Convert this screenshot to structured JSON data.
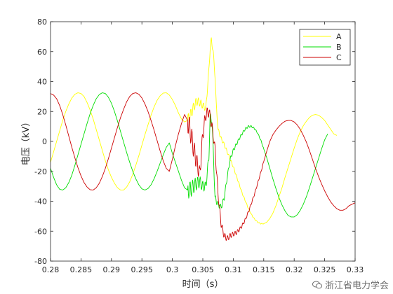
{
  "chart_data": {
    "type": "line",
    "xlabel": "时间（s）",
    "ylabel": "电压（kV）",
    "xlim": [
      0.28,
      0.33
    ],
    "ylim": [
      -80,
      80
    ],
    "x_ticks": [
      "0.28",
      "0.285",
      "0.29",
      "0.295",
      "0.3",
      "0.305",
      "0.31",
      "0.315",
      "0.32",
      "0.325",
      "0.33"
    ],
    "y_ticks": [
      "80",
      "60",
      "40",
      "20",
      "0",
      "-20",
      "-40",
      "-60",
      "-80"
    ],
    "legend_position": "top-right",
    "grid": false,
    "series": [
      {
        "name": "A",
        "color": "#ffff00",
        "points": [
          [
            0.28,
            -14
          ],
          [
            0.2805,
            -7
          ],
          [
            0.281,
            0
          ],
          [
            0.2815,
            7
          ],
          [
            0.282,
            14
          ],
          [
            0.2825,
            20
          ],
          [
            0.283,
            25
          ],
          [
            0.2835,
            29
          ],
          [
            0.284,
            31.5
          ],
          [
            0.2845,
            32.5
          ],
          [
            0.285,
            32
          ],
          [
            0.2855,
            30
          ],
          [
            0.286,
            26
          ],
          [
            0.2865,
            21
          ],
          [
            0.287,
            15
          ],
          [
            0.2875,
            8
          ],
          [
            0.288,
            1
          ],
          [
            0.2885,
            -6
          ],
          [
            0.289,
            -13
          ],
          [
            0.2895,
            -19
          ],
          [
            0.29,
            -24
          ],
          [
            0.2905,
            -28
          ],
          [
            0.291,
            -31
          ],
          [
            0.2915,
            -32.5
          ],
          [
            0.292,
            -32.5
          ],
          [
            0.2925,
            -30.5
          ],
          [
            0.293,
            -27
          ],
          [
            0.2935,
            -22
          ],
          [
            0.294,
            -16
          ],
          [
            0.2945,
            -9.5
          ],
          [
            0.295,
            -2.5
          ],
          [
            0.2955,
            4.5
          ],
          [
            0.296,
            11
          ],
          [
            0.2965,
            17.5
          ],
          [
            0.297,
            23
          ],
          [
            0.2975,
            27.5
          ],
          [
            0.298,
            30.5
          ],
          [
            0.2985,
            32.3
          ],
          [
            0.299,
            32.5
          ],
          [
            0.2995,
            31
          ],
          [
            0.3,
            28
          ],
          [
            0.3005,
            24
          ],
          [
            0.301,
            19
          ],
          [
            0.3015,
            15
          ],
          [
            0.302,
            13
          ],
          [
            0.3025,
            14
          ],
          [
            0.303,
            18
          ],
          [
            0.3035,
            23
          ],
          [
            0.304,
            27
          ],
          [
            0.3045,
            26
          ],
          [
            0.305,
            24
          ],
          [
            0.3055,
            22
          ],
          [
            0.306,
            48
          ],
          [
            0.3062,
            62
          ],
          [
            0.3064,
            68
          ],
          [
            0.3067,
            60
          ],
          [
            0.307,
            44
          ],
          [
            0.3072,
            25
          ],
          [
            0.3075,
            8
          ],
          [
            0.308,
            2
          ],
          [
            0.3085,
            -2
          ],
          [
            0.309,
            -7
          ],
          [
            0.3095,
            -12
          ],
          [
            0.31,
            -17
          ],
          [
            0.3105,
            -23
          ],
          [
            0.311,
            -29
          ],
          [
            0.3115,
            -35
          ],
          [
            0.312,
            -40
          ],
          [
            0.3125,
            -45
          ],
          [
            0.313,
            -49
          ],
          [
            0.3135,
            -52
          ],
          [
            0.314,
            -54
          ],
          [
            0.3145,
            -55
          ],
          [
            0.315,
            -55
          ],
          [
            0.3155,
            -54
          ],
          [
            0.316,
            -51.5
          ],
          [
            0.3165,
            -48
          ],
          [
            0.317,
            -43
          ],
          [
            0.3175,
            -37
          ],
          [
            0.318,
            -31
          ],
          [
            0.3185,
            -24
          ],
          [
            0.319,
            -17.5
          ],
          [
            0.3195,
            -11
          ],
          [
            0.32,
            -4.5
          ],
          [
            0.3205,
            1.5
          ],
          [
            0.321,
            6.5
          ],
          [
            0.3215,
            10.5
          ],
          [
            0.322,
            13.5
          ],
          [
            0.3225,
            16
          ],
          [
            0.323,
            17.5
          ],
          [
            0.3235,
            18
          ],
          [
            0.324,
            17.5
          ],
          [
            0.3245,
            16
          ],
          [
            0.325,
            14
          ],
          [
            0.3255,
            11
          ],
          [
            0.326,
            8
          ],
          [
            0.3265,
            5
          ],
          [
            0.327,
            4
          ]
        ]
      },
      {
        "name": "B",
        "color": "#00dd00",
        "points": [
          [
            0.28,
            -18
          ],
          [
            0.2805,
            -24
          ],
          [
            0.281,
            -29
          ],
          [
            0.2815,
            -32
          ],
          [
            0.282,
            -32.5
          ],
          [
            0.2825,
            -31
          ],
          [
            0.283,
            -27.5
          ],
          [
            0.2835,
            -22.5
          ],
          [
            0.284,
            -16
          ],
          [
            0.2845,
            -9
          ],
          [
            0.285,
            -2
          ],
          [
            0.2855,
            5
          ],
          [
            0.286,
            12
          ],
          [
            0.2865,
            18.5
          ],
          [
            0.287,
            24
          ],
          [
            0.2875,
            28.5
          ],
          [
            0.288,
            31.3
          ],
          [
            0.2885,
            32.5
          ],
          [
            0.289,
            32
          ],
          [
            0.2895,
            29.5
          ],
          [
            0.29,
            25.5
          ],
          [
            0.2905,
            20
          ],
          [
            0.291,
            13.5
          ],
          [
            0.2915,
            6.5
          ],
          [
            0.292,
            -0.5
          ],
          [
            0.2925,
            -7.5
          ],
          [
            0.293,
            -14
          ],
          [
            0.2935,
            -20
          ],
          [
            0.294,
            -25
          ],
          [
            0.2945,
            -29
          ],
          [
            0.295,
            -31.7
          ],
          [
            0.2955,
            -32.5
          ],
          [
            0.296,
            -31.5
          ],
          [
            0.2965,
            -29
          ],
          [
            0.297,
            -25
          ],
          [
            0.2975,
            -20
          ],
          [
            0.298,
            -14.5
          ],
          [
            0.2985,
            -9
          ],
          [
            0.299,
            -4
          ],
          [
            0.2995,
            -1
          ],
          [
            0.3,
            -8
          ],
          [
            0.3005,
            -14
          ],
          [
            0.301,
            -20
          ],
          [
            0.3015,
            -26
          ],
          [
            0.302,
            -31
          ],
          [
            0.3025,
            -32.5
          ],
          [
            0.303,
            -32
          ],
          [
            0.3035,
            -30
          ],
          [
            0.304,
            -28
          ],
          [
            0.3045,
            -27
          ],
          [
            0.305,
            -30
          ],
          [
            0.3055,
            -30
          ],
          [
            0.306,
            -10
          ],
          [
            0.3062,
            16
          ],
          [
            0.3065,
            14
          ],
          [
            0.3068,
            -15
          ],
          [
            0.307,
            -38
          ],
          [
            0.3075,
            -42
          ],
          [
            0.308,
            -44
          ],
          [
            0.3085,
            -38
          ],
          [
            0.309,
            -24
          ],
          [
            0.3095,
            -12
          ],
          [
            0.31,
            -6
          ],
          [
            0.3105,
            -2
          ],
          [
            0.311,
            2
          ],
          [
            0.3115,
            5.5
          ],
          [
            0.312,
            8.5
          ],
          [
            0.3125,
            10
          ],
          [
            0.313,
            10
          ],
          [
            0.3135,
            8.5
          ],
          [
            0.314,
            5.5
          ],
          [
            0.3145,
            1
          ],
          [
            0.315,
            -5
          ],
          [
            0.3155,
            -11
          ],
          [
            0.316,
            -18
          ],
          [
            0.3165,
            -25
          ],
          [
            0.317,
            -31.5
          ],
          [
            0.3175,
            -37.5
          ],
          [
            0.318,
            -42.5
          ],
          [
            0.3185,
            -46.5
          ],
          [
            0.319,
            -49.5
          ],
          [
            0.3195,
            -50.5
          ],
          [
            0.32,
            -50.5
          ],
          [
            0.3205,
            -49
          ],
          [
            0.321,
            -46
          ],
          [
            0.3215,
            -42
          ],
          [
            0.322,
            -37
          ],
          [
            0.3225,
            -31
          ],
          [
            0.323,
            -24.5
          ],
          [
            0.3235,
            -18
          ],
          [
            0.324,
            -11.5
          ],
          [
            0.3245,
            -5
          ],
          [
            0.325,
            1
          ],
          [
            0.3255,
            5
          ]
        ]
      },
      {
        "name": "C",
        "color": "#cc0000",
        "points": [
          [
            0.28,
            32
          ],
          [
            0.2805,
            31
          ],
          [
            0.281,
            28.5
          ],
          [
            0.2815,
            24
          ],
          [
            0.282,
            18
          ],
          [
            0.2825,
            11
          ],
          [
            0.283,
            3.5
          ],
          [
            0.2835,
            -4
          ],
          [
            0.284,
            -11
          ],
          [
            0.2845,
            -17.5
          ],
          [
            0.285,
            -23
          ],
          [
            0.2855,
            -27.5
          ],
          [
            0.286,
            -30.5
          ],
          [
            0.2865,
            -32.3
          ],
          [
            0.287,
            -32.5
          ],
          [
            0.2875,
            -31
          ],
          [
            0.288,
            -28
          ],
          [
            0.2885,
            -23.5
          ],
          [
            0.289,
            -18
          ],
          [
            0.2895,
            -11.5
          ],
          [
            0.29,
            -4.5
          ],
          [
            0.2905,
            2.5
          ],
          [
            0.291,
            9.5
          ],
          [
            0.2915,
            16
          ],
          [
            0.292,
            21.5
          ],
          [
            0.2925,
            26.5
          ],
          [
            0.293,
            30
          ],
          [
            0.2935,
            32
          ],
          [
            0.294,
            32.5
          ],
          [
            0.2945,
            31.5
          ],
          [
            0.295,
            29
          ],
          [
            0.2955,
            25
          ],
          [
            0.296,
            20
          ],
          [
            0.2965,
            14
          ],
          [
            0.297,
            7.5
          ],
          [
            0.2975,
            0.5
          ],
          [
            0.298,
            -6.5
          ],
          [
            0.2985,
            -13
          ],
          [
            0.299,
            -18
          ],
          [
            0.2995,
            -20
          ],
          [
            0.3,
            -12
          ],
          [
            0.3005,
            -3
          ],
          [
            0.301,
            5
          ],
          [
            0.3015,
            12
          ],
          [
            0.302,
            18
          ],
          [
            0.3025,
            14
          ],
          [
            0.303,
            6
          ],
          [
            0.3035,
            -5
          ],
          [
            0.304,
            -14
          ],
          [
            0.3045,
            -22
          ],
          [
            0.305,
            5
          ],
          [
            0.3055,
            18
          ],
          [
            0.306,
            20
          ],
          [
            0.3065,
            10
          ],
          [
            0.307,
            -5
          ],
          [
            0.3075,
            -35
          ],
          [
            0.308,
            -55
          ],
          [
            0.3085,
            -63
          ],
          [
            0.309,
            -65
          ],
          [
            0.3095,
            -63
          ],
          [
            0.31,
            -62
          ],
          [
            0.3105,
            -61
          ],
          [
            0.311,
            -59
          ],
          [
            0.3115,
            -56
          ],
          [
            0.312,
            -52
          ],
          [
            0.3125,
            -47
          ],
          [
            0.313,
            -41
          ],
          [
            0.3135,
            -35
          ],
          [
            0.314,
            -28
          ],
          [
            0.3145,
            -21
          ],
          [
            0.315,
            -13.5
          ],
          [
            0.3155,
            -6.5
          ],
          [
            0.316,
            0
          ],
          [
            0.3165,
            4.5
          ],
          [
            0.317,
            7.5
          ],
          [
            0.3175,
            10
          ],
          [
            0.318,
            12
          ],
          [
            0.3185,
            13.5
          ],
          [
            0.319,
            14
          ],
          [
            0.3195,
            14
          ],
          [
            0.32,
            13
          ],
          [
            0.3205,
            11
          ],
          [
            0.321,
            8
          ],
          [
            0.3215,
            4
          ],
          [
            0.322,
            -0.5
          ],
          [
            0.3225,
            -6
          ],
          [
            0.323,
            -12
          ],
          [
            0.3235,
            -18
          ],
          [
            0.324,
            -23.5
          ],
          [
            0.3245,
            -28.5
          ],
          [
            0.325,
            -33
          ],
          [
            0.3255,
            -37
          ],
          [
            0.326,
            -40.5
          ],
          [
            0.3265,
            -43
          ],
          [
            0.327,
            -45
          ],
          [
            0.3275,
            -46
          ],
          [
            0.328,
            -46
          ],
          [
            0.3285,
            -45
          ],
          [
            0.329,
            -43
          ],
          [
            0.33,
            -41
          ]
        ]
      }
    ],
    "oscillation_zone": [
      0.3025,
      0.315
    ]
  },
  "watermark": {
    "text": "浙江省电力学会",
    "icon": "wechat-icon"
  }
}
